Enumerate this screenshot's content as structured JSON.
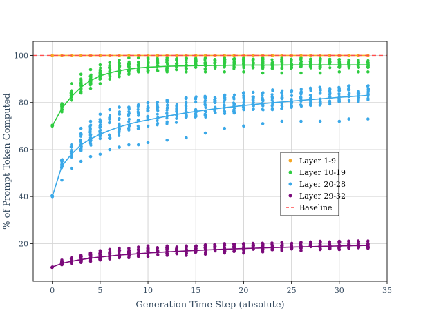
{
  "chart_data": {
    "type": "scatter",
    "title": "",
    "xlabel": "Generation Time Step (absolute)",
    "ylabel": "% of Prompt Token Computed",
    "xlim": [
      -2,
      35
    ],
    "ylim": [
      4,
      106
    ],
    "xticks": [
      "0",
      "5",
      "10",
      "15",
      "20",
      "25",
      "30",
      "35"
    ],
    "yticks": [
      "20",
      "40",
      "60",
      "80",
      "100"
    ],
    "grid": true,
    "legend_position": "center-right",
    "legend": [
      {
        "name": "Layer 1-9",
        "color": "#f5a623",
        "kind": "dot"
      },
      {
        "name": "Layer 10-19",
        "color": "#2ecc40",
        "kind": "dot"
      },
      {
        "name": "Layer 20-28",
        "color": "#3aa8e8",
        "kind": "dot"
      },
      {
        "name": "Layer 29-32",
        "color": "#7b0a7b",
        "kind": "dot"
      },
      {
        "name": "Baseline",
        "color": "#ff4d4d",
        "kind": "dashed"
      }
    ],
    "baseline": 100,
    "series": [
      {
        "name": "Layer 1-9",
        "color": "#f5a623",
        "x": [
          0,
          5,
          10,
          15,
          20,
          25,
          30,
          33
        ],
        "trend": [
          100,
          100,
          100,
          100,
          100,
          100,
          100,
          100
        ],
        "points": {
          "x": [
            0,
            1,
            2,
            3,
            4,
            5,
            6,
            7,
            8,
            9,
            10,
            11,
            12,
            13,
            14,
            15,
            16,
            17,
            18,
            19,
            20,
            21,
            22,
            23,
            24,
            25,
            26,
            27,
            28,
            29,
            30,
            31,
            32,
            33
          ],
          "y": [
            100,
            100,
            100,
            100,
            100,
            100,
            100,
            100,
            100,
            100,
            100,
            100,
            100,
            100,
            100,
            100,
            100,
            100,
            100,
            100,
            100,
            100,
            100,
            100,
            100,
            100,
            100,
            100,
            100,
            100,
            100,
            100,
            100,
            100
          ]
        }
      },
      {
        "name": "Layer 10-19",
        "color": "#2ecc40",
        "x": [
          0,
          1,
          2,
          3,
          4,
          5,
          6,
          7,
          8,
          9,
          10,
          12,
          14,
          16,
          18,
          20,
          23,
          26,
          30,
          33
        ],
        "trend": [
          70,
          77.5,
          82.5,
          86.5,
          89.3,
          91.3,
          92.6,
          93.5,
          94.2,
          94.7,
          95.0,
          95.4,
          95.6,
          95.7,
          95.8,
          95.9,
          95.9,
          96.0,
          96.0,
          96.0
        ],
        "spread": [
          1,
          3,
          4,
          5,
          5,
          5,
          5,
          5,
          5,
          5,
          5,
          5,
          5,
          4.5,
          4,
          4,
          4,
          4,
          3.5,
          3
        ],
        "points": {
          "x": [
            0,
            1,
            1,
            2,
            2,
            2,
            3,
            3,
            3,
            4,
            4,
            4,
            5,
            5,
            5,
            6,
            6,
            7,
            7,
            8,
            8,
            9,
            9,
            10,
            10,
            12,
            12,
            14,
            14,
            16,
            16,
            18,
            18,
            20,
            20,
            22,
            22,
            24,
            24,
            26,
            26,
            28,
            28,
            30,
            30,
            31,
            32,
            33
          ],
          "y": [
            70,
            76,
            79,
            81,
            85,
            88,
            84,
            88,
            92,
            86,
            90,
            94,
            88,
            92,
            96,
            90,
            97,
            91,
            98,
            92,
            99,
            93,
            99,
            93,
            99,
            93,
            99,
            93,
            99,
            93,
            99,
            93,
            99,
            93,
            99,
            92.5,
            99,
            92.5,
            99,
            92.5,
            99,
            92.5,
            98,
            93,
            97,
            96,
            93,
            93
          ]
        }
      },
      {
        "name": "Layer 20-28",
        "color": "#3aa8e8",
        "x": [
          0,
          1,
          2,
          3,
          4,
          5,
          6,
          7,
          8,
          9,
          10,
          12,
          14,
          16,
          18,
          20,
          23,
          26,
          30,
          33
        ],
        "trend": [
          40,
          53,
          58,
          62,
          64.5,
          66.5,
          68.2,
          69.6,
          70.8,
          71.8,
          72.6,
          74.2,
          75.6,
          76.8,
          77.8,
          78.7,
          79.9,
          80.9,
          82.2,
          83.0
        ],
        "spread": [
          1,
          4,
          5,
          7,
          9,
          10,
          10,
          10,
          10,
          10,
          10,
          9,
          9,
          9,
          8,
          8,
          8,
          7,
          7,
          6
        ],
        "points": {
          "x": [
            0,
            1,
            1,
            2,
            2,
            2,
            3,
            3,
            3,
            4,
            4,
            4,
            5,
            5,
            5,
            6,
            6,
            7,
            7,
            8,
            8,
            9,
            9,
            10,
            10,
            12,
            12,
            14,
            14,
            16,
            16,
            18,
            18,
            20,
            20,
            22,
            22,
            24,
            24,
            26,
            26,
            28,
            28,
            30,
            30,
            31,
            32,
            33
          ],
          "y": [
            40,
            47,
            53,
            52,
            58,
            62,
            55,
            62,
            69,
            57,
            65,
            72,
            58,
            67,
            75,
            60,
            77,
            61,
            78,
            62,
            78,
            62,
            79,
            63,
            80,
            64,
            81,
            65,
            82,
            67,
            82,
            69,
            83,
            70,
            84,
            71,
            84,
            72,
            84,
            72,
            84,
            72,
            84,
            72,
            85,
            73,
            84,
            73
          ]
        }
      },
      {
        "name": "Layer 29-32",
        "color": "#7b0a7b",
        "x": [
          0,
          1,
          2,
          3,
          4,
          5,
          6,
          7,
          8,
          9,
          10,
          12,
          14,
          16,
          18,
          20,
          23,
          26,
          30,
          33
        ],
        "trend": [
          10,
          11.6,
          12.5,
          13.2,
          13.8,
          14.3,
          14.7,
          15.1,
          15.4,
          15.7,
          16.0,
          16.5,
          16.9,
          17.3,
          17.6,
          17.9,
          18.3,
          18.6,
          19.0,
          19.2
        ],
        "spread": [
          0.5,
          1.5,
          2,
          2.5,
          3,
          3,
          3,
          3,
          3,
          3,
          3,
          3,
          3,
          3,
          3,
          3,
          3,
          3,
          3,
          3
        ],
        "points": {
          "x": [
            0,
            1,
            1,
            2,
            2,
            3,
            3,
            4,
            4,
            5,
            5,
            6,
            6,
            7,
            7,
            8,
            8,
            9,
            9,
            10,
            10,
            12,
            12,
            14,
            14,
            16,
            16,
            18,
            18,
            20,
            20,
            22,
            22,
            24,
            24,
            26,
            26,
            28,
            28,
            30,
            30,
            31,
            32,
            33
          ],
          "y": [
            10,
            11,
            13,
            11.5,
            14,
            12,
            15,
            12.5,
            16,
            13,
            17,
            13.5,
            17.5,
            14,
            18,
            14,
            18,
            14.5,
            18.5,
            14.5,
            19,
            15,
            19,
            15,
            19,
            15.5,
            19.5,
            16,
            20,
            16,
            20,
            16.5,
            20,
            17,
            20.5,
            17,
            20.5,
            17.5,
            21,
            17.5,
            21,
            18,
            18.5,
            18
          ]
        }
      }
    ]
  }
}
